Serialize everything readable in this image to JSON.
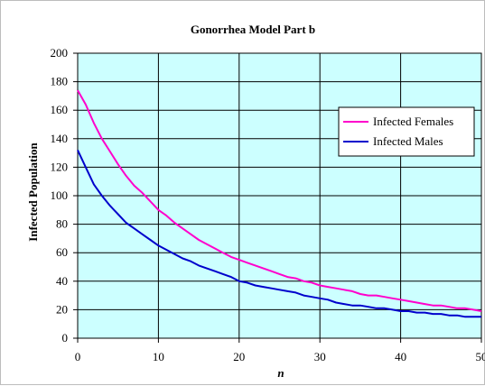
{
  "chart_data": {
    "type": "line",
    "title": "Gonorrhea Model Part b",
    "xlabel": "n",
    "ylabel": "Infected Population",
    "xlim": [
      0,
      50
    ],
    "ylim": [
      0,
      200
    ],
    "xticks": [
      0,
      10,
      20,
      30,
      40,
      50
    ],
    "yticks": [
      0,
      20,
      40,
      60,
      80,
      100,
      120,
      140,
      160,
      180,
      200
    ],
    "grid": true,
    "plot_background": "#ccffff",
    "legend_position": "top-right",
    "x": [
      0,
      1,
      2,
      3,
      4,
      5,
      6,
      7,
      8,
      9,
      10,
      11,
      12,
      13,
      14,
      15,
      16,
      17,
      18,
      19,
      20,
      21,
      22,
      23,
      24,
      25,
      26,
      27,
      28,
      29,
      30,
      31,
      32,
      33,
      34,
      35,
      36,
      37,
      38,
      39,
      40,
      41,
      42,
      43,
      44,
      45,
      46,
      47,
      48,
      49,
      50
    ],
    "series": [
      {
        "name": "Infected Females",
        "color": "#ff00cc",
        "values": [
          174,
          164,
          151,
          140,
          131,
          122,
          114,
          107,
          102,
          96,
          90,
          86,
          81,
          77,
          73,
          69,
          66,
          63,
          60,
          57,
          55,
          53,
          51,
          49,
          47,
          45,
          43,
          42,
          40,
          39,
          37,
          36,
          35,
          34,
          33,
          31,
          30,
          30,
          29,
          28,
          27,
          26,
          25,
          24,
          23,
          23,
          22,
          21,
          21,
          20,
          19
        ]
      },
      {
        "name": "Infected Males",
        "color": "#0000cc",
        "values": [
          132,
          120,
          108,
          100,
          93,
          87,
          81,
          77,
          73,
          69,
          65,
          62,
          59,
          56,
          54,
          51,
          49,
          47,
          45,
          43,
          40,
          39,
          37,
          36,
          35,
          34,
          33,
          32,
          30,
          29,
          28,
          27,
          25,
          24,
          23,
          23,
          22,
          21,
          21,
          20,
          19,
          19,
          18,
          18,
          17,
          17,
          16,
          16,
          15,
          15,
          15
        ]
      }
    ]
  }
}
